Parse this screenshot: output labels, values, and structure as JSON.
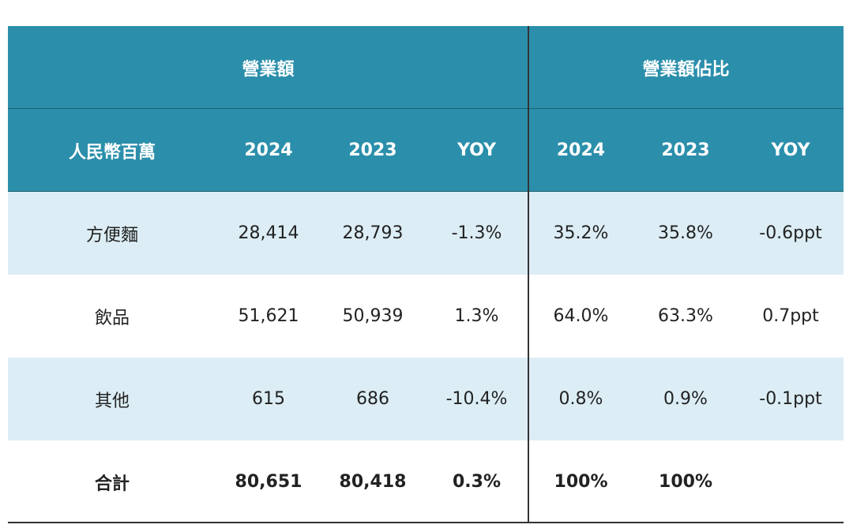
{
  "table": {
    "group_headers": [
      "營業額",
      "營業額佔比"
    ],
    "columns": [
      "人民幣百萬",
      "2024",
      "2023",
      "YOY",
      "2024",
      "2023",
      "YOY"
    ],
    "rows": [
      [
        "方便麵",
        "28,414",
        "28,793",
        "-1.3%",
        "35.2%",
        "35.8%",
        "-0.6ppt"
      ],
      [
        "飲品",
        "51,621",
        "50,939",
        "1.3%",
        "64.0%",
        "63.3%",
        "0.7ppt"
      ],
      [
        "其他",
        "615",
        "686",
        "-10.4%",
        "0.8%",
        "0.9%",
        "-0.1ppt"
      ],
      [
        "合計",
        "80,651",
        "80,418",
        "0.3%",
        "100%",
        "100%",
        null
      ]
    ]
  }
}
